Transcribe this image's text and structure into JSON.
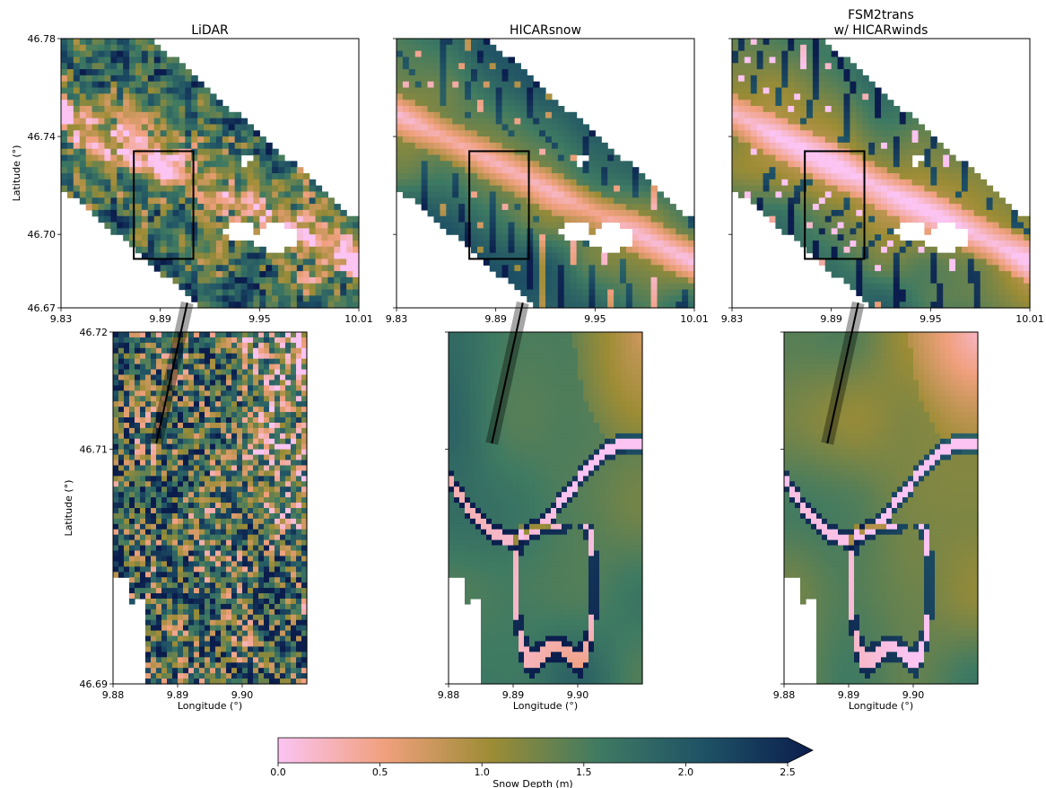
{
  "chart_data": [
    {
      "type": "heatmap",
      "title": "LiDAR",
      "xlabel": "",
      "ylabel": "Latitude (°)",
      "xlim": [
        9.83,
        10.01
      ],
      "ylim": [
        46.67,
        46.78
      ],
      "xticks": [
        "9.83",
        "9.89",
        "9.95",
        "10.01"
      ],
      "yticks": [
        "46.67",
        "46.70",
        "46.74",
        "46.78"
      ],
      "style": "rough",
      "box": {
        "lon": [
          9.874,
          9.91
        ],
        "lat": [
          46.69,
          46.734
        ]
      }
    },
    {
      "type": "heatmap",
      "title": "HICARsnow",
      "xlabel": "",
      "ylabel": "",
      "xlim": [
        9.83,
        10.01
      ],
      "ylim": [
        46.67,
        46.78
      ],
      "xticks": [
        "9.83",
        "9.89",
        "9.95",
        "10.01"
      ],
      "yticks": [],
      "style": "smooth",
      "box": {
        "lon": [
          9.874,
          9.91
        ],
        "lat": [
          46.69,
          46.734
        ]
      }
    },
    {
      "type": "heatmap",
      "title": "FSM2trans\nw/ HICARwinds",
      "xlabel": "",
      "ylabel": "",
      "xlim": [
        9.83,
        10.01
      ],
      "ylim": [
        46.67,
        46.78
      ],
      "xticks": [
        "9.83",
        "9.89",
        "9.95",
        "10.01"
      ],
      "yticks": [],
      "style": "channels",
      "box": {
        "lon": [
          9.874,
          9.91
        ],
        "lat": [
          46.69,
          46.734
        ]
      }
    },
    {
      "type": "heatmap",
      "title": "",
      "xlabel": "Longitude (°)",
      "ylabel": "Latitude (°)",
      "xlim": [
        9.88,
        9.91
      ],
      "ylim": [
        46.69,
        46.72
      ],
      "xticks": [
        "9.88",
        "9.89",
        "9.90"
      ],
      "yticks": [
        "46.69",
        "46.71",
        "46.72"
      ],
      "style": "rough",
      "transect": {
        "from": [
          9.8867,
          46.7105
        ],
        "to": [
          9.8915,
          46.7225
        ]
      }
    },
    {
      "type": "heatmap",
      "title": "",
      "xlabel": "Longitude (°)",
      "ylabel": "",
      "xlim": [
        9.88,
        9.91
      ],
      "ylim": [
        46.69,
        46.72
      ],
      "xticks": [
        "9.88",
        "9.89",
        "9.90"
      ],
      "yticks": [],
      "style": "smooth",
      "transect": {
        "from": [
          9.8867,
          46.7105
        ],
        "to": [
          9.8915,
          46.7225
        ]
      }
    },
    {
      "type": "heatmap",
      "title": "",
      "xlabel": "Longitude (°)",
      "ylabel": "",
      "xlim": [
        9.88,
        9.91
      ],
      "ylim": [
        46.69,
        46.72
      ],
      "xticks": [
        "9.88",
        "9.89",
        "9.90"
      ],
      "yticks": [],
      "style": "channels",
      "transect": {
        "from": [
          9.8867,
          46.7105
        ],
        "to": [
          9.8915,
          46.7225
        ]
      }
    }
  ],
  "colorbar": {
    "label": "Snow Depth (m)",
    "min": 0.0,
    "max": 2.5,
    "extend": "max",
    "ticks": [
      "0.0",
      "0.5",
      "1.0",
      "1.5",
      "2.0",
      "2.5"
    ],
    "colors": [
      "#fbc4f2",
      "#f0a07d",
      "#9c8c35",
      "#3f7a62",
      "#1e5165",
      "#0b1d4d"
    ]
  }
}
